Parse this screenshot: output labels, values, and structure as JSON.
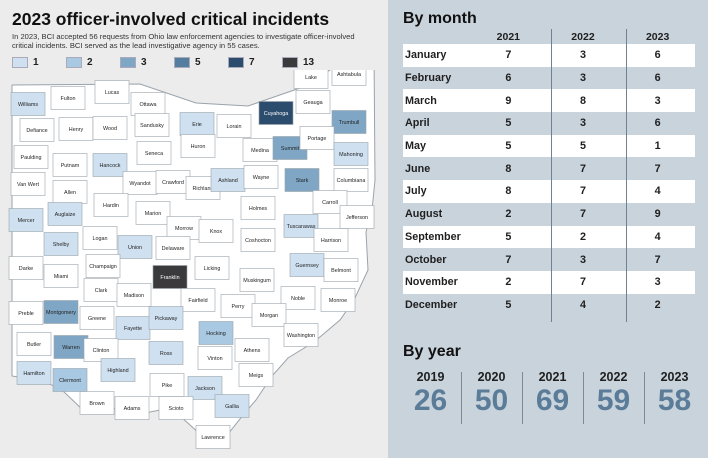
{
  "title": "2023 officer-involved critical incidents",
  "subtitle": "In 2023, BCI accepted 56 requests from Ohio law enforcement agencies to investigate officer-involved critical incidents. BCI served as the lead investigative agency in 55 cases.",
  "legend": [
    {
      "label": "1",
      "color": "#cfe0f0"
    },
    {
      "label": "2",
      "color": "#a9c8e2"
    },
    {
      "label": "3",
      "color": "#7fa6c5"
    },
    {
      "label": "5",
      "color": "#557d9f"
    },
    {
      "label": "7",
      "color": "#2b4c6d"
    },
    {
      "label": "13",
      "color": "#3a3a3c"
    }
  ],
  "by_month": {
    "heading": "By month",
    "years": [
      "2021",
      "2022",
      "2023"
    ],
    "rows": [
      {
        "month": "January",
        "v": [
          "7",
          "3",
          "6"
        ]
      },
      {
        "month": "February",
        "v": [
          "6",
          "3",
          "6"
        ]
      },
      {
        "month": "March",
        "v": [
          "9",
          "8",
          "3"
        ]
      },
      {
        "month": "April",
        "v": [
          "5",
          "3",
          "6"
        ]
      },
      {
        "month": "May",
        "v": [
          "5",
          "5",
          "1"
        ]
      },
      {
        "month": "June",
        "v": [
          "8",
          "7",
          "7"
        ]
      },
      {
        "month": "July",
        "v": [
          "8",
          "7",
          "4"
        ]
      },
      {
        "month": "August",
        "v": [
          "2",
          "7",
          "9"
        ]
      },
      {
        "month": "September",
        "v": [
          "5",
          "2",
          "4"
        ]
      },
      {
        "month": "October",
        "v": [
          "7",
          "3",
          "7"
        ]
      },
      {
        "month": "November",
        "v": [
          "2",
          "7",
          "3"
        ]
      },
      {
        "month": "December",
        "v": [
          "5",
          "4",
          "2"
        ]
      }
    ]
  },
  "by_year": {
    "heading": "By year",
    "items": [
      {
        "year": "2019",
        "value": "26"
      },
      {
        "year": "2020",
        "value": "50"
      },
      {
        "year": "2021",
        "value": "69"
      },
      {
        "year": "2022",
        "value": "59"
      },
      {
        "year": "2023",
        "value": "58"
      }
    ]
  },
  "chart_data": [
    {
      "type": "table",
      "title": "By month",
      "columns": [
        "2021",
        "2022",
        "2023"
      ],
      "categories": [
        "January",
        "February",
        "March",
        "April",
        "May",
        "June",
        "July",
        "August",
        "September",
        "October",
        "November",
        "December"
      ],
      "series": [
        {
          "name": "2021",
          "values": [
            7,
            6,
            9,
            5,
            5,
            8,
            8,
            2,
            5,
            7,
            2,
            5
          ]
        },
        {
          "name": "2022",
          "values": [
            3,
            3,
            8,
            3,
            5,
            7,
            7,
            7,
            2,
            3,
            7,
            4
          ]
        },
        {
          "name": "2023",
          "values": [
            6,
            6,
            3,
            6,
            1,
            7,
            4,
            9,
            4,
            7,
            3,
            2
          ]
        }
      ]
    },
    {
      "type": "table",
      "title": "By year",
      "categories": [
        "2019",
        "2020",
        "2021",
        "2022",
        "2023"
      ],
      "values": [
        26,
        50,
        69,
        59,
        58
      ]
    },
    {
      "type": "heatmap",
      "title": "2023 officer-involved critical incidents",
      "counties": [
        {
          "name": "Williams",
          "value": 1
        },
        {
          "name": "Fulton",
          "value": 0
        },
        {
          "name": "Lucas",
          "value": 0
        },
        {
          "name": "Ottawa",
          "value": 0
        },
        {
          "name": "Erie",
          "value": 1
        },
        {
          "name": "Lorain",
          "value": 0
        },
        {
          "name": "Cuyahoga",
          "value": 7
        },
        {
          "name": "Lake",
          "value": 0
        },
        {
          "name": "Geauga",
          "value": 0
        },
        {
          "name": "Ashtabula",
          "value": 0
        },
        {
          "name": "Trumbull",
          "value": 3
        },
        {
          "name": "Defiance",
          "value": 0
        },
        {
          "name": "Henry",
          "value": 0
        },
        {
          "name": "Wood",
          "value": 0
        },
        {
          "name": "Sandusky",
          "value": 0
        },
        {
          "name": "Huron",
          "value": 0
        },
        {
          "name": "Medina",
          "value": 0
        },
        {
          "name": "Summit",
          "value": 3
        },
        {
          "name": "Portage",
          "value": 0
        },
        {
          "name": "Mahoning",
          "value": 1
        },
        {
          "name": "Paulding",
          "value": 0
        },
        {
          "name": "Putnam",
          "value": 0
        },
        {
          "name": "Hancock",
          "value": 1
        },
        {
          "name": "Seneca",
          "value": 0
        },
        {
          "name": "Van Wert",
          "value": 0
        },
        {
          "name": "Allen",
          "value": 0
        },
        {
          "name": "Wyandot",
          "value": 0
        },
        {
          "name": "Crawford",
          "value": 0
        },
        {
          "name": "Richland",
          "value": 0
        },
        {
          "name": "Ashland",
          "value": 1
        },
        {
          "name": "Wayne",
          "value": 0
        },
        {
          "name": "Stark",
          "value": 3
        },
        {
          "name": "Columbiana",
          "value": 0
        },
        {
          "name": "Mercer",
          "value": 1
        },
        {
          "name": "Auglaize",
          "value": 1
        },
        {
          "name": "Hardin",
          "value": 0
        },
        {
          "name": "Marion",
          "value": 0
        },
        {
          "name": "Morrow",
          "value": 0
        },
        {
          "name": "Knox",
          "value": 0
        },
        {
          "name": "Holmes",
          "value": 0
        },
        {
          "name": "Tuscarawas",
          "value": 1
        },
        {
          "name": "Carroll",
          "value": 0
        },
        {
          "name": "Jefferson",
          "value": 0
        },
        {
          "name": "Shelby",
          "value": 1
        },
        {
          "name": "Logan",
          "value": 0
        },
        {
          "name": "Union",
          "value": 1
        },
        {
          "name": "Delaware",
          "value": 0
        },
        {
          "name": "Coshocton",
          "value": 0
        },
        {
          "name": "Harrison",
          "value": 0
        },
        {
          "name": "Darke",
          "value": 0
        },
        {
          "name": "Miami",
          "value": 0
        },
        {
          "name": "Champaign",
          "value": 0
        },
        {
          "name": "Franklin",
          "value": 13
        },
        {
          "name": "Licking",
          "value": 0
        },
        {
          "name": "Muskingum",
          "value": 0
        },
        {
          "name": "Guernsey",
          "value": 1
        },
        {
          "name": "Belmont",
          "value": 0
        },
        {
          "name": "Clark",
          "value": 0
        },
        {
          "name": "Madison",
          "value": 0
        },
        {
          "name": "Fairfield",
          "value": 0
        },
        {
          "name": "Perry",
          "value": 0
        },
        {
          "name": "Noble",
          "value": 0
        },
        {
          "name": "Monroe",
          "value": 0
        },
        {
          "name": "Preble",
          "value": 0
        },
        {
          "name": "Montgomery",
          "value": 3
        },
        {
          "name": "Greene",
          "value": 0
        },
        {
          "name": "Fayette",
          "value": 1
        },
        {
          "name": "Pickaway",
          "value": 1
        },
        {
          "name": "Hocking",
          "value": 2
        },
        {
          "name": "Morgan",
          "value": 0
        },
        {
          "name": "Washington",
          "value": 0
        },
        {
          "name": "Butler",
          "value": 0
        },
        {
          "name": "Warren",
          "value": 3
        },
        {
          "name": "Clinton",
          "value": 0
        },
        {
          "name": "Ross",
          "value": 1
        },
        {
          "name": "Vinton",
          "value": 0
        },
        {
          "name": "Athens",
          "value": 0
        },
        {
          "name": "Hamilton",
          "value": 1
        },
        {
          "name": "Clermont",
          "value": 2
        },
        {
          "name": "Highland",
          "value": 1
        },
        {
          "name": "Pike",
          "value": 0
        },
        {
          "name": "Jackson",
          "value": 1
        },
        {
          "name": "Meigs",
          "value": 0
        },
        {
          "name": "Brown",
          "value": 0
        },
        {
          "name": "Adams",
          "value": 0
        },
        {
          "name": "Scioto",
          "value": 0
        },
        {
          "name": "Gallia",
          "value": 1
        },
        {
          "name": "Lawrence",
          "value": 0
        }
      ]
    }
  ]
}
